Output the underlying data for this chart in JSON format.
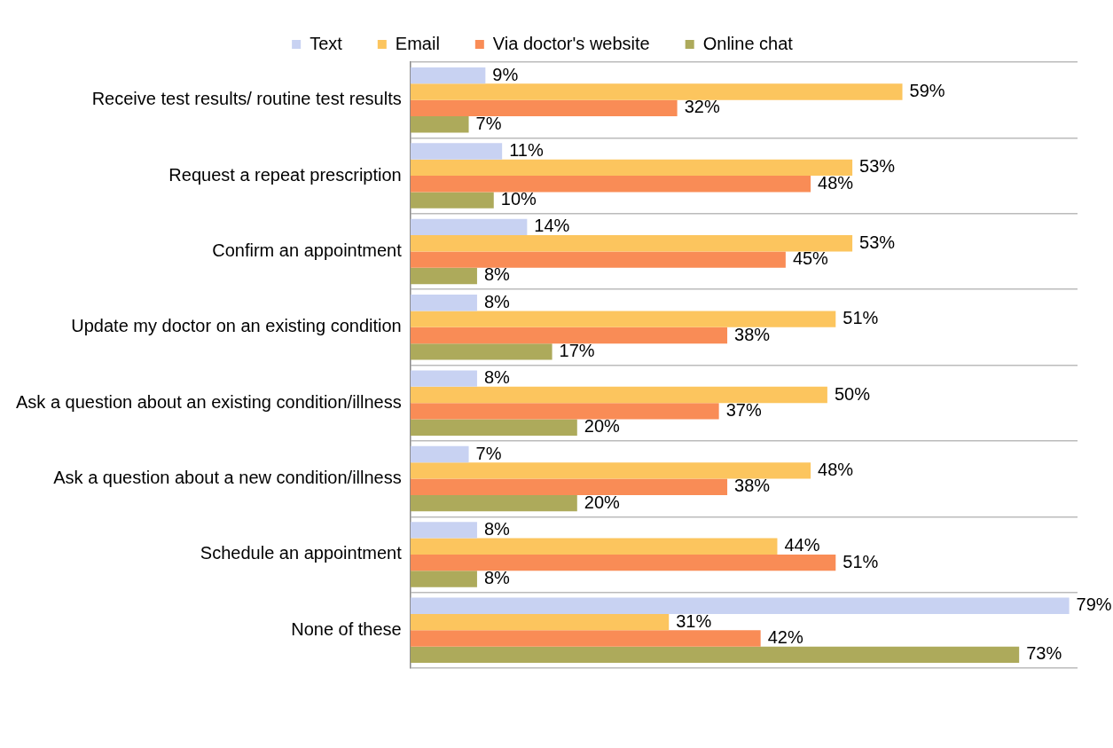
{
  "chart_data": {
    "type": "bar",
    "orientation": "horizontal",
    "categories": [
      "Receive test results/ routine test results",
      "Request a repeat prescription",
      "Confirm an appointment",
      "Update my doctor on an existing condition",
      "Ask a question about an existing condition/illness",
      "Ask a question about a new condition/illness",
      "Schedule an appointment",
      "None of these"
    ],
    "series": [
      {
        "name": "Text",
        "color": "#c8d2f2",
        "values": [
          9,
          11,
          14,
          8,
          8,
          7,
          8,
          79
        ],
        "value_labels": [
          "9%",
          "11%",
          "14%",
          "8%",
          "8%",
          "7%",
          "8%",
          "79%"
        ]
      },
      {
        "name": "Email",
        "color": "#fcc55e",
        "values": [
          59,
          53,
          53,
          51,
          50,
          48,
          44,
          31
        ],
        "value_labels": [
          "59%",
          "53%",
          "53%",
          "51%",
          "50%",
          "48%",
          "44%",
          "31%"
        ]
      },
      {
        "name": "Via doctor's website",
        "color": "#f98c56",
        "values": [
          32,
          48,
          45,
          38,
          37,
          38,
          51,
          42
        ],
        "value_labels": [
          "32%",
          "48%",
          "45%",
          "38%",
          "37%",
          "38%",
          "51%",
          "42%"
        ]
      },
      {
        "name": "Online chat",
        "color": "#adaa5b",
        "values": [
          7,
          10,
          8,
          17,
          20,
          20,
          8,
          73
        ],
        "value_labels": [
          "7%",
          "10%",
          "8%",
          "17%",
          "20%",
          "20%",
          "8%",
          "73%"
        ]
      }
    ],
    "tick_labels": "y",
    "grid": "y",
    "legend": "top"
  }
}
